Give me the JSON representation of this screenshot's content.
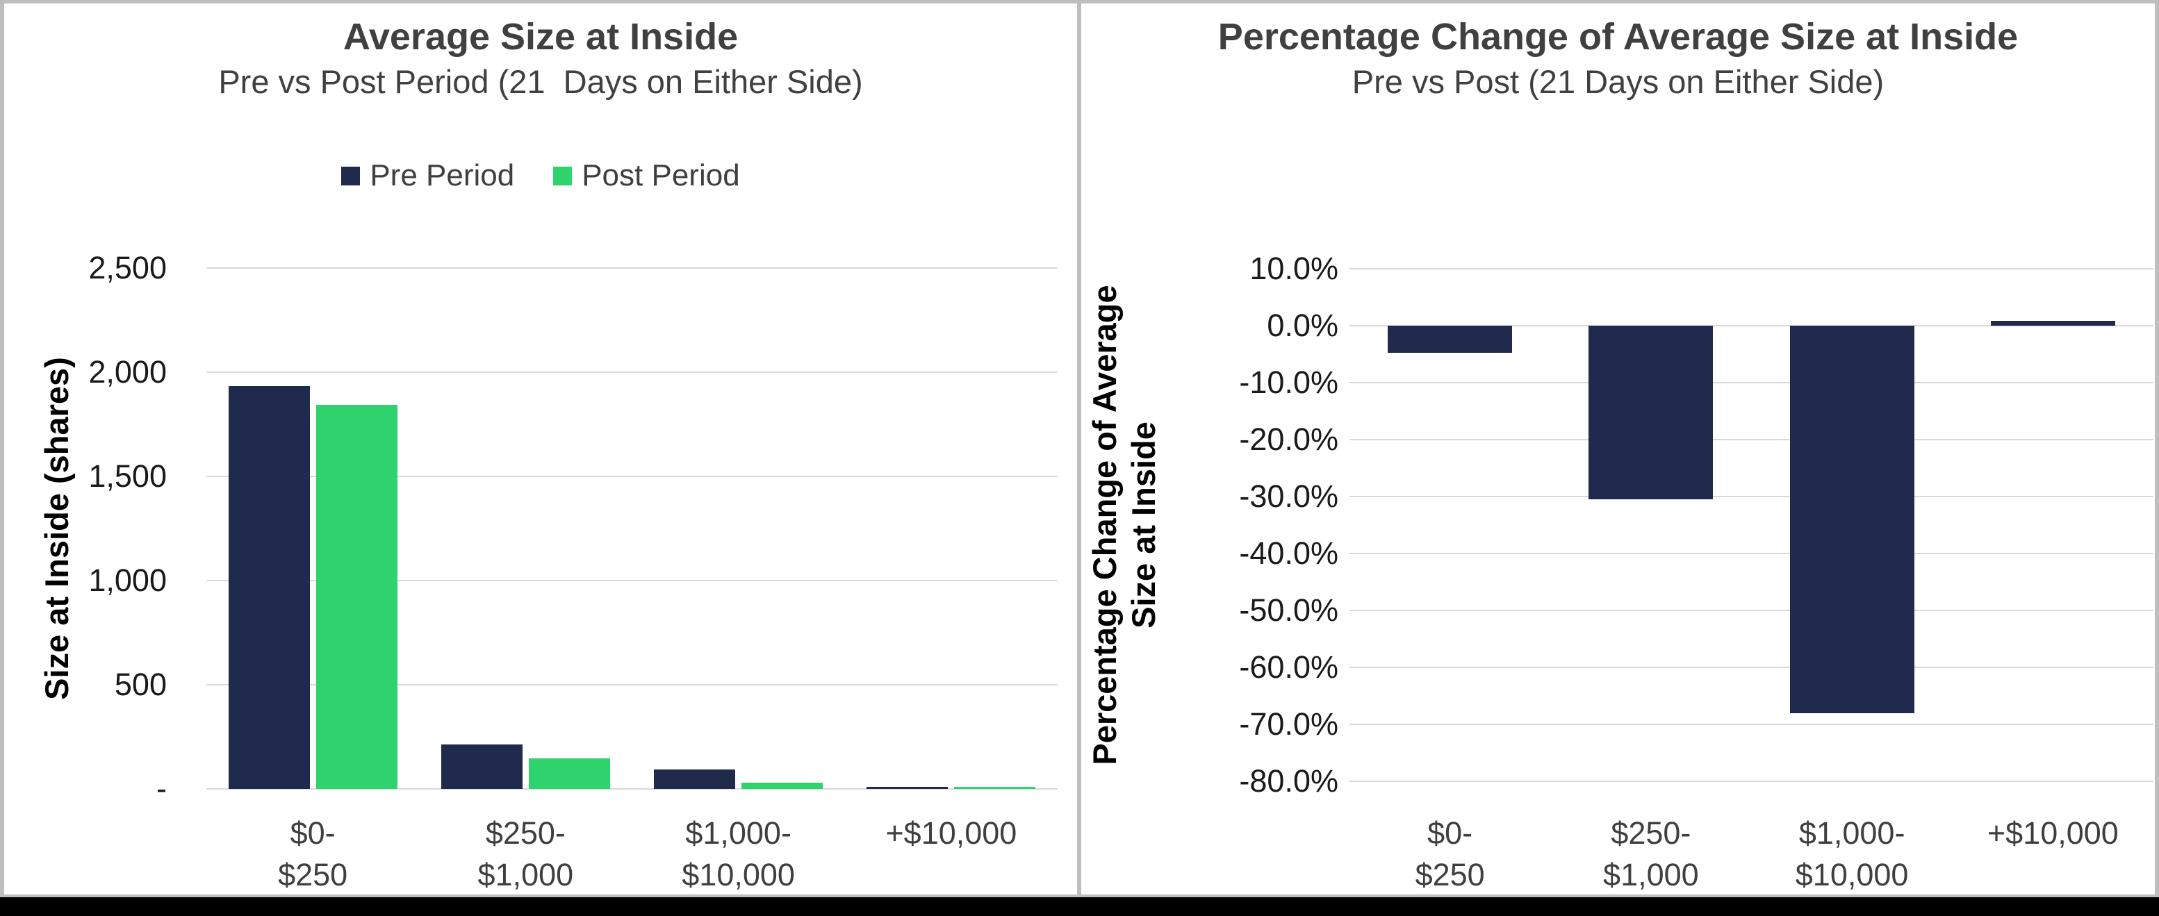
{
  "window": {
    "background_color": "#BEBEBE",
    "bottom_bar_color": "#000000",
    "panel_color": "#FFFFFF",
    "gridline_color": "#D9D9D9"
  },
  "chart_data": [
    {
      "type": "bar",
      "panel": "left",
      "title": "Average Size at Inside",
      "subtitle": "Pre vs Post Period (21  Days on Either Side)",
      "legend_position": "top",
      "grid": true,
      "xlabel": "",
      "ylabel": "Size at Inside (shares)",
      "ylabel_lines": [
        "Size at Inside (shares)"
      ],
      "ylim": [
        0,
        2500
      ],
      "ytick_step": 500,
      "y_tick_labels": [
        "2,500",
        "2,000",
        "1,500",
        "1,000",
        "500",
        "-"
      ],
      "categories": [
        [
          "$0-",
          "$250"
        ],
        [
          "$250-",
          "$1,000"
        ],
        [
          "$1,000-",
          "$10,000"
        ],
        [
          "+$10,000"
        ]
      ],
      "series": [
        {
          "name": "Pre Period",
          "color": "#1F2A4C",
          "values": [
            1933,
            212,
            95,
            10
          ]
        },
        {
          "name": "Post Period",
          "color": "#2FD36E",
          "values": [
            1843,
            148,
            30,
            10
          ]
        }
      ]
    },
    {
      "type": "bar",
      "panel": "right",
      "title": "Percentage Change of Average Size at Inside",
      "subtitle": "Pre vs Post (21 Days on Either Side)",
      "legend_position": "none",
      "grid": true,
      "xlabel": "",
      "ylabel": "Percentage Change of Average Size at Inside",
      "ylabel_lines": [
        "Percentage Change of Average",
        "Size at Inside"
      ],
      "ylim": [
        -80,
        10
      ],
      "ytick_step": 10,
      "y_tick_labels": [
        "10.0%",
        "0.0%",
        "-10.0%",
        "-20.0%",
        "-30.0%",
        "-40.0%",
        "-50.0%",
        "-60.0%",
        "-70.0%",
        "-80.0%"
      ],
      "categories": [
        [
          "$0-",
          "$250"
        ],
        [
          "$250-",
          "$1,000"
        ],
        [
          "$1,000-",
          "$10,000"
        ],
        [
          "+$10,000"
        ]
      ],
      "series": [
        {
          "name": "Percentage Change",
          "color": "#1F2A4C",
          "values": [
            -4.7,
            -30.5,
            -68.0,
            0.8
          ]
        }
      ]
    }
  ]
}
